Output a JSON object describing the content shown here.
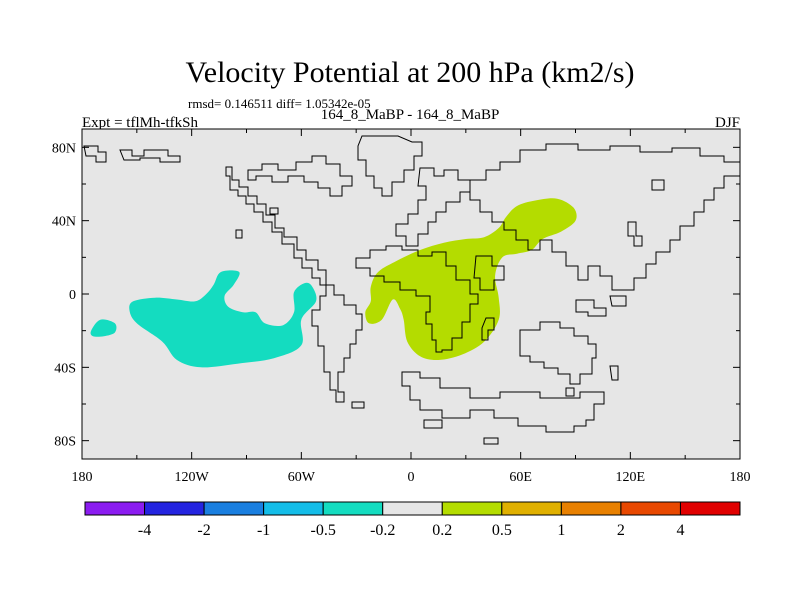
{
  "chart_data": {
    "type": "contour-map",
    "title": "Velocity Potential at 200 hPa (km2/s)",
    "stats_line": "rmsd= 0.146511 diff= 1.05342e-05",
    "subtitle": "164_8_MaBP - 164_8_MaBP",
    "left_label": "Expt = tflMh-tfkSh",
    "right_label": "DJF",
    "x_axis": {
      "range": [
        -180,
        180
      ],
      "ticks": [
        -180,
        -120,
        -60,
        0,
        60,
        120,
        180
      ],
      "tick_labels": [
        "180",
        "120W",
        "60W",
        "0",
        "60E",
        "120E",
        "180"
      ]
    },
    "y_axis": {
      "range": [
        -90,
        90
      ],
      "ticks": [
        80,
        40,
        0,
        -40,
        -80
      ],
      "tick_labels": [
        "80N",
        "40N",
        "0",
        "40S",
        "80S"
      ]
    },
    "colorbar": {
      "boundary_labels": [
        "-4",
        "-2",
        "-1",
        "-0.5",
        "-0.2",
        "0.2",
        "0.5",
        "1",
        "2",
        "4"
      ],
      "bin_colors": [
        "#8B1CF0",
        "#2424E0",
        "#1A7FE0",
        "#14BDE8",
        "#14DCC0",
        "#E6E6E6",
        "#B4DC00",
        "#E0B000",
        "#E88000",
        "#E84800",
        "#E00000"
      ]
    },
    "shaded_regions": [
      {
        "name": "positive-anomaly-africa-asia",
        "bin": "0.2 to 0.5",
        "color": "#B4DC00",
        "outline_lonlat": [
          [
            -22,
            4
          ],
          [
            -18,
            12
          ],
          [
            -8,
            18
          ],
          [
            5,
            24
          ],
          [
            18,
            28
          ],
          [
            30,
            30
          ],
          [
            40,
            31
          ],
          [
            48,
            36
          ],
          [
            52,
            42
          ],
          [
            58,
            48
          ],
          [
            68,
            51
          ],
          [
            80,
            52
          ],
          [
            89,
            47
          ],
          [
            90,
            40
          ],
          [
            82,
            34
          ],
          [
            72,
            30
          ],
          [
            66,
            24
          ],
          [
            58,
            22
          ],
          [
            50,
            20
          ],
          [
            46,
            10
          ],
          [
            48,
            -2
          ],
          [
            48,
            -14
          ],
          [
            40,
            -26
          ],
          [
            28,
            -33
          ],
          [
            15,
            -36
          ],
          [
            5,
            -34
          ],
          [
            -2,
            -26
          ],
          [
            -4,
            -14
          ],
          [
            -6,
            -8
          ],
          [
            -10,
            -3
          ],
          [
            -16,
            -14
          ],
          [
            -23,
            -16
          ],
          [
            -25,
            -10
          ],
          [
            -22,
            -4
          ]
        ]
      },
      {
        "name": "negative-anomaly-east-pacific",
        "bin": "-0.5 to -0.2",
        "color": "#14DCC0",
        "outline_lonlat": [
          [
            -152,
            -4
          ],
          [
            -140,
            -2
          ],
          [
            -128,
            -3
          ],
          [
            -118,
            -4
          ],
          [
            -112,
            0
          ],
          [
            -108,
            5
          ],
          [
            -104,
            12
          ],
          [
            -94,
            12
          ],
          [
            -97,
            5
          ],
          [
            -102,
            -1
          ],
          [
            -100,
            -7
          ],
          [
            -92,
            -10
          ],
          [
            -85,
            -10
          ],
          [
            -80,
            -16
          ],
          [
            -70,
            -17
          ],
          [
            -64,
            -10
          ],
          [
            -64,
            1
          ],
          [
            -58,
            6
          ],
          [
            -54,
            4
          ],
          [
            -52,
            -4
          ],
          [
            -60,
            -14
          ],
          [
            -60,
            -28
          ],
          [
            -75,
            -35
          ],
          [
            -95,
            -38
          ],
          [
            -115,
            -40
          ],
          [
            -128,
            -36
          ],
          [
            -136,
            -26
          ],
          [
            -150,
            -16
          ],
          [
            -154,
            -9
          ]
        ]
      },
      {
        "name": "negative-anomaly-southwest-pacific",
        "bin": "-0.5 to -0.2",
        "color": "#14DCC0",
        "outline_lonlat": [
          [
            -175,
            -20
          ],
          [
            -170,
            -14
          ],
          [
            -162,
            -16
          ],
          [
            -162,
            -21
          ],
          [
            -168,
            -23
          ],
          [
            -174,
            -23
          ]
        ]
      }
    ],
    "coastlines": "stepped continent outlines (thin black), global Mercator-like lat/lon grid"
  }
}
